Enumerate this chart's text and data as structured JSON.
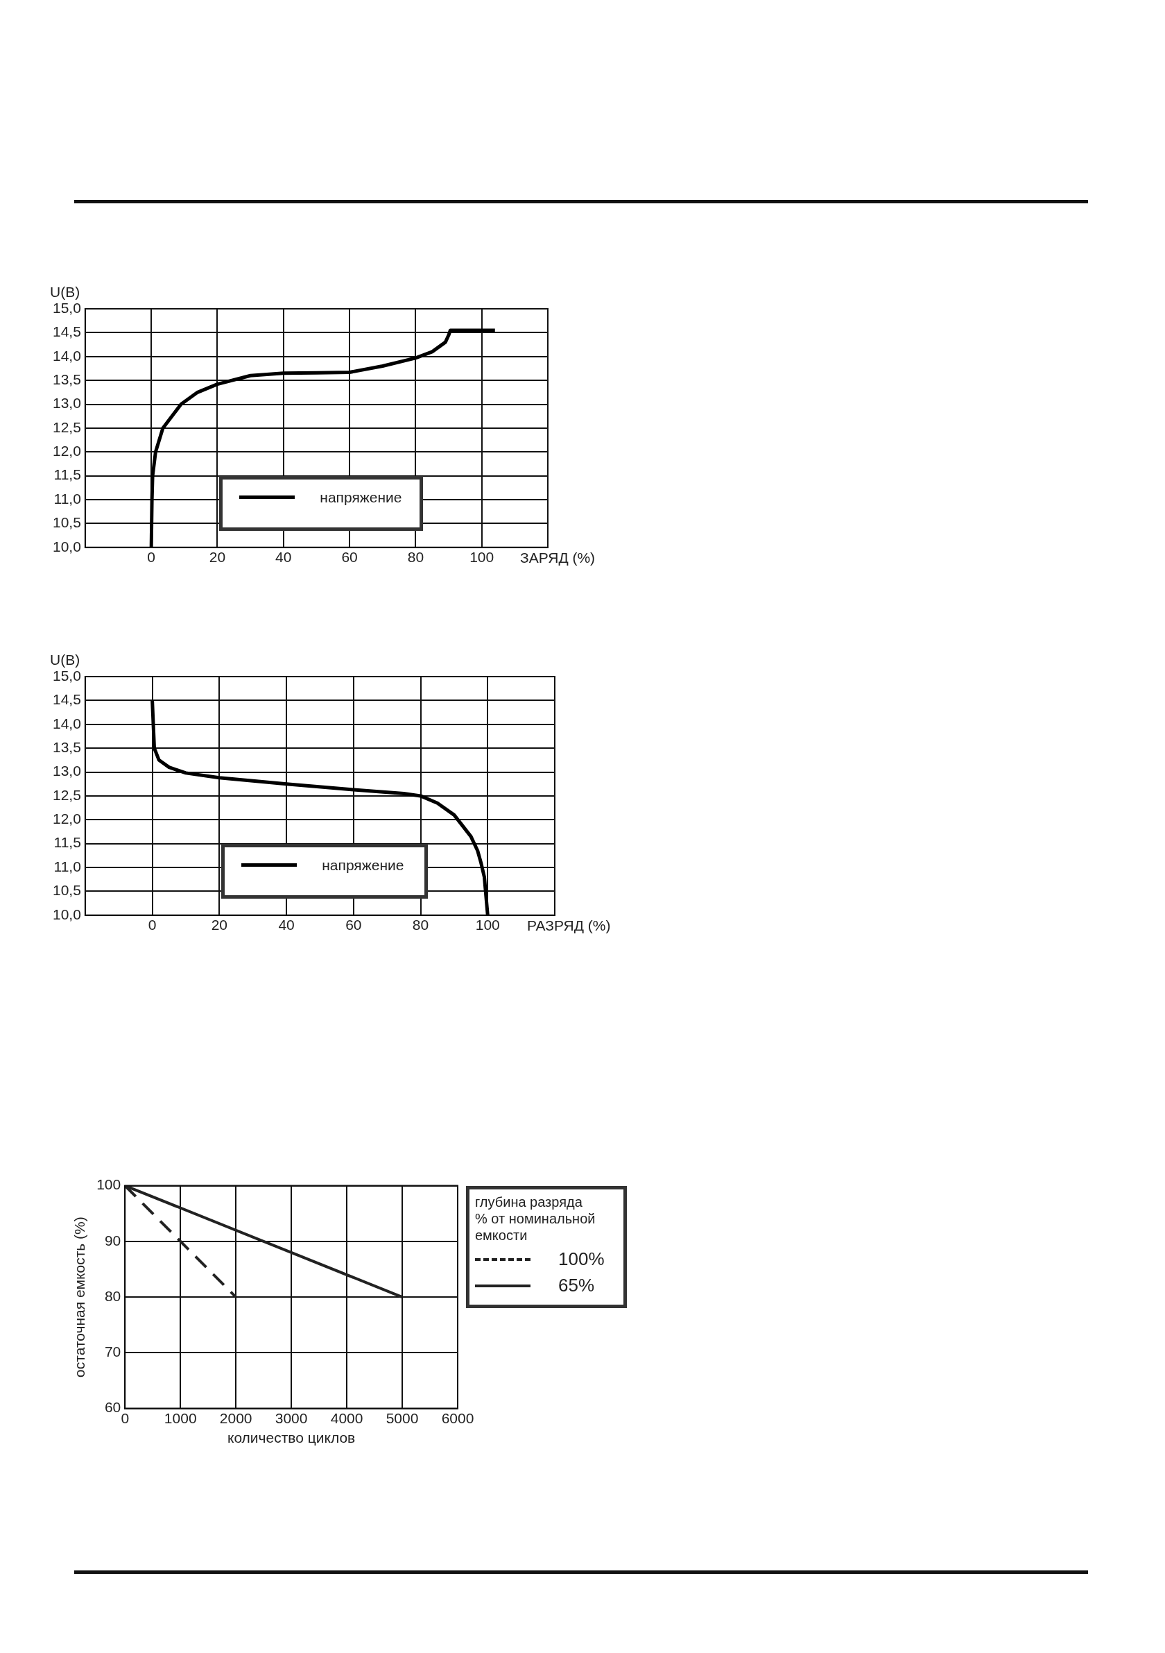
{
  "chart_data": [
    {
      "type": "line",
      "xlabel": "ЗАРЯД (%)",
      "ylabel": "U(B)",
      "xlim": [
        -20,
        120
      ],
      "xticks": [
        0,
        20,
        40,
        60,
        80,
        100
      ],
      "ylim": [
        10,
        15
      ],
      "yticks": [
        {
          "value": 10,
          "label": "10,0"
        },
        {
          "value": 10.5,
          "label": "10,5"
        },
        {
          "value": 11,
          "label": "11,0"
        },
        {
          "value": 11.5,
          "label": "11,5"
        },
        {
          "value": 12,
          "label": "12,0"
        },
        {
          "value": 12.5,
          "label": "12,5"
        },
        {
          "value": 13,
          "label": "13,0"
        },
        {
          "value": 13.5,
          "label": "13,5"
        },
        {
          "value": 14,
          "label": "14,0"
        },
        {
          "value": 14.5,
          "label": "14,5"
        },
        {
          "value": 15,
          "label": "15,0"
        }
      ],
      "grid": true,
      "legend": "bottom",
      "series": [
        {
          "name": "напряжение",
          "color": "#000000",
          "x": [
            0,
            0.2,
            0.4,
            1.3,
            3.5,
            9,
            14,
            20,
            30,
            40,
            50,
            60,
            70,
            80,
            85,
            89,
            90,
            90.5,
            104
          ],
          "values": [
            10,
            11,
            11.5,
            12,
            12.5,
            13,
            13.25,
            13.42,
            13.6,
            13.65,
            13.66,
            13.67,
            13.8,
            13.97,
            14.1,
            14.3,
            14.45,
            14.55,
            14.55
          ]
        }
      ]
    },
    {
      "type": "line",
      "xlabel": "РАЗРЯД (%)",
      "ylabel": "U(B)",
      "xlim": [
        -20,
        120
      ],
      "xticks": [
        0,
        20,
        40,
        60,
        80,
        100
      ],
      "ylim": [
        10,
        15
      ],
      "yticks": [
        {
          "value": 10,
          "label": "10,0"
        },
        {
          "value": 10.5,
          "label": "10,5"
        },
        {
          "value": 11,
          "label": "11,0"
        },
        {
          "value": 11.5,
          "label": "11,5"
        },
        {
          "value": 12,
          "label": "12,0"
        },
        {
          "value": 12.5,
          "label": "12,5"
        },
        {
          "value": 13,
          "label": "13,0"
        },
        {
          "value": 13.5,
          "label": "13,5"
        },
        {
          "value": 14,
          "label": "14,0"
        },
        {
          "value": 14.5,
          "label": "14,5"
        },
        {
          "value": 15,
          "label": "15,0"
        }
      ],
      "grid": true,
      "legend": "bottom",
      "series": [
        {
          "name": "напряжение",
          "color": "#000000",
          "x": [
            0,
            0.3,
            0.6,
            2,
            5,
            10,
            20,
            40,
            60,
            75,
            80,
            85,
            90,
            95,
            97,
            98,
            99,
            100
          ],
          "values": [
            14.5,
            14,
            13.5,
            13.25,
            13.1,
            12.98,
            12.88,
            12.75,
            12.63,
            12.55,
            12.5,
            12.35,
            12.1,
            11.65,
            11.35,
            11.1,
            10.8,
            10
          ]
        }
      ]
    },
    {
      "type": "line",
      "xlabel": "количество циклов",
      "ylabel": "остаточная емкость (%)",
      "legend_title": "глубина разряда\n% от номинальной\nемкости",
      "xlim": [
        0,
        6000
      ],
      "xticks": [
        0,
        1000,
        2000,
        3000,
        4000,
        5000,
        6000
      ],
      "ylim": [
        60,
        100
      ],
      "yticks": [
        60,
        70,
        80,
        90,
        100
      ],
      "grid": true,
      "legend": "right",
      "series": [
        {
          "name": "100%",
          "color": "#222222",
          "line_style": "dashed",
          "x": [
            0,
            2000
          ],
          "values": [
            100,
            80
          ]
        },
        {
          "name": "65%",
          "color": "#222222",
          "line_style": "solid",
          "x": [
            0,
            5000
          ],
          "values": [
            100,
            80
          ]
        }
      ]
    }
  ]
}
